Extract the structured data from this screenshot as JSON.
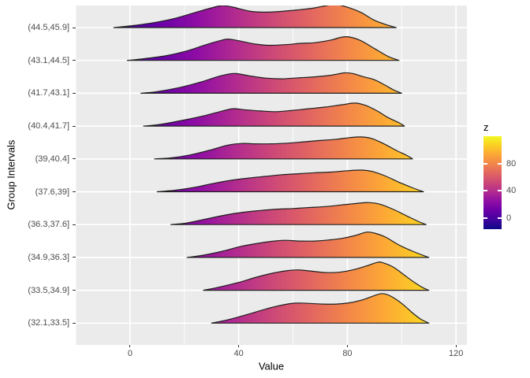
{
  "figure": {
    "background": "#ffffff",
    "panel_bg": "#ebebeb",
    "grid_color": "#ffffff",
    "tick_color": "#333333",
    "tick_label_color": "#4d4d4d",
    "title_color": "#000000",
    "ridge_stroke": "#1f1f1f"
  },
  "chart_data": {
    "type": "area",
    "variant": "ridgeline-gradient",
    "title": "",
    "xlabel": "Value",
    "ylabel": "Group Intervals",
    "x_ticks": [
      0,
      40,
      80,
      120
    ],
    "x_minor_ticks": [
      -20,
      20,
      60,
      100
    ],
    "x_domain": [
      -20,
      124
    ],
    "grid": true,
    "categories": [
      "(44.5,45.9]",
      "(43.1,44.5]",
      "(41.7,43.1]",
      "(40.4,41.7]",
      "(39,40.4]",
      "(37.6,39]",
      "(36.3,37.6]",
      "(34.9,36.3]",
      "(33.5,34.9]",
      "(32.1,33.5]"
    ],
    "series": [
      {
        "name": "(44.5,45.9]",
        "points": [
          [
            -6,
            0
          ],
          [
            0,
            0.05
          ],
          [
            8,
            0.14
          ],
          [
            16,
            0.27
          ],
          [
            24,
            0.46
          ],
          [
            30,
            0.6
          ],
          [
            34,
            0.67
          ],
          [
            38,
            0.62
          ],
          [
            44,
            0.5
          ],
          [
            49,
            0.47
          ],
          [
            55,
            0.49
          ],
          [
            62,
            0.54
          ],
          [
            68,
            0.6
          ],
          [
            73,
            0.68
          ],
          [
            76,
            0.7
          ],
          [
            80,
            0.62
          ],
          [
            85,
            0.46
          ],
          [
            90,
            0.22
          ],
          [
            95,
            0.07
          ],
          [
            98,
            0
          ]
        ]
      },
      {
        "name": "(43.1,44.5]",
        "points": [
          [
            -1,
            0
          ],
          [
            5,
            0.05
          ],
          [
            13,
            0.14
          ],
          [
            21,
            0.29
          ],
          [
            28,
            0.48
          ],
          [
            33,
            0.6
          ],
          [
            36,
            0.65
          ],
          [
            40,
            0.6
          ],
          [
            46,
            0.5
          ],
          [
            51,
            0.46
          ],
          [
            57,
            0.48
          ],
          [
            63,
            0.52
          ],
          [
            68,
            0.54
          ],
          [
            74,
            0.62
          ],
          [
            78,
            0.71
          ],
          [
            81,
            0.71
          ],
          [
            85,
            0.6
          ],
          [
            90,
            0.36
          ],
          [
            95,
            0.12
          ],
          [
            99,
            0
          ]
        ]
      },
      {
        "name": "(41.7,43.1]",
        "points": [
          [
            4,
            0
          ],
          [
            10,
            0.05
          ],
          [
            18,
            0.17
          ],
          [
            26,
            0.34
          ],
          [
            32,
            0.5
          ],
          [
            36,
            0.58
          ],
          [
            39,
            0.6
          ],
          [
            44,
            0.53
          ],
          [
            50,
            0.46
          ],
          [
            56,
            0.44
          ],
          [
            62,
            0.47
          ],
          [
            68,
            0.5
          ],
          [
            74,
            0.55
          ],
          [
            79,
            0.62
          ],
          [
            82,
            0.6
          ],
          [
            86,
            0.5
          ],
          [
            90,
            0.41
          ],
          [
            94,
            0.24
          ],
          [
            97,
            0.1
          ],
          [
            100,
            0
          ]
        ]
      },
      {
        "name": "(40.4,41.7]",
        "points": [
          [
            5,
            0
          ],
          [
            11,
            0.05
          ],
          [
            19,
            0.17
          ],
          [
            27,
            0.31
          ],
          [
            34,
            0.46
          ],
          [
            38,
            0.53
          ],
          [
            42,
            0.5
          ],
          [
            48,
            0.46
          ],
          [
            54,
            0.44
          ],
          [
            60,
            0.48
          ],
          [
            66,
            0.53
          ],
          [
            72,
            0.58
          ],
          [
            78,
            0.65
          ],
          [
            83,
            0.7
          ],
          [
            87,
            0.62
          ],
          [
            91,
            0.46
          ],
          [
            95,
            0.26
          ],
          [
            99,
            0.1
          ],
          [
            101,
            0
          ]
        ]
      },
      {
        "name": "(39,40.4]",
        "points": [
          [
            9,
            0
          ],
          [
            15,
            0.03
          ],
          [
            22,
            0.12
          ],
          [
            29,
            0.26
          ],
          [
            36,
            0.42
          ],
          [
            41,
            0.47
          ],
          [
            46,
            0.46
          ],
          [
            52,
            0.46
          ],
          [
            58,
            0.48
          ],
          [
            64,
            0.52
          ],
          [
            70,
            0.56
          ],
          [
            76,
            0.6
          ],
          [
            81,
            0.65
          ],
          [
            85,
            0.67
          ],
          [
            89,
            0.62
          ],
          [
            93,
            0.48
          ],
          [
            98,
            0.26
          ],
          [
            102,
            0.1
          ],
          [
            104,
            0
          ]
        ]
      },
      {
        "name": "(37.6,39]",
        "points": [
          [
            10,
            0
          ],
          [
            17,
            0.05
          ],
          [
            24,
            0.14
          ],
          [
            31,
            0.26
          ],
          [
            38,
            0.36
          ],
          [
            44,
            0.42
          ],
          [
            50,
            0.47
          ],
          [
            56,
            0.52
          ],
          [
            62,
            0.55
          ],
          [
            68,
            0.58
          ],
          [
            74,
            0.6
          ],
          [
            80,
            0.64
          ],
          [
            85,
            0.66
          ],
          [
            89,
            0.62
          ],
          [
            94,
            0.48
          ],
          [
            99,
            0.29
          ],
          [
            104,
            0.12
          ],
          [
            108,
            0
          ]
        ]
      },
      {
        "name": "(36.3,37.6]",
        "points": [
          [
            15,
            0
          ],
          [
            21,
            0.05
          ],
          [
            28,
            0.17
          ],
          [
            35,
            0.29
          ],
          [
            42,
            0.38
          ],
          [
            48,
            0.43
          ],
          [
            54,
            0.47
          ],
          [
            60,
            0.49
          ],
          [
            66,
            0.52
          ],
          [
            72,
            0.55
          ],
          [
            78,
            0.6
          ],
          [
            84,
            0.65
          ],
          [
            88,
            0.67
          ],
          [
            92,
            0.62
          ],
          [
            97,
            0.46
          ],
          [
            102,
            0.26
          ],
          [
            106,
            0.1
          ],
          [
            109,
            0
          ]
        ]
      },
      {
        "name": "(34.9,36.3]",
        "points": [
          [
            21,
            0
          ],
          [
            27,
            0.07
          ],
          [
            34,
            0.19
          ],
          [
            41,
            0.34
          ],
          [
            47,
            0.43
          ],
          [
            52,
            0.49
          ],
          [
            57,
            0.52
          ],
          [
            62,
            0.5
          ],
          [
            68,
            0.5
          ],
          [
            73,
            0.53
          ],
          [
            78,
            0.58
          ],
          [
            83,
            0.67
          ],
          [
            87,
            0.77
          ],
          [
            90,
            0.74
          ],
          [
            94,
            0.62
          ],
          [
            99,
            0.38
          ],
          [
            104,
            0.19
          ],
          [
            108,
            0.06
          ],
          [
            110,
            0
          ]
        ]
      },
      {
        "name": "(33.5,34.9]",
        "points": [
          [
            27,
            0
          ],
          [
            33,
            0.1
          ],
          [
            40,
            0.24
          ],
          [
            47,
            0.41
          ],
          [
            53,
            0.53
          ],
          [
            58,
            0.6
          ],
          [
            62,
            0.62
          ],
          [
            67,
            0.58
          ],
          [
            72,
            0.54
          ],
          [
            77,
            0.55
          ],
          [
            82,
            0.62
          ],
          [
            87,
            0.74
          ],
          [
            91,
            0.85
          ],
          [
            93,
            0.84
          ],
          [
            97,
            0.7
          ],
          [
            101,
            0.46
          ],
          [
            105,
            0.22
          ],
          [
            108,
            0.07
          ],
          [
            110,
            0
          ]
        ]
      },
      {
        "name": "(32.1,33.5]",
        "points": [
          [
            30,
            0
          ],
          [
            36,
            0.1
          ],
          [
            43,
            0.26
          ],
          [
            50,
            0.43
          ],
          [
            56,
            0.55
          ],
          [
            61,
            0.61
          ],
          [
            66,
            0.6
          ],
          [
            71,
            0.58
          ],
          [
            76,
            0.58
          ],
          [
            81,
            0.62
          ],
          [
            86,
            0.72
          ],
          [
            90,
            0.84
          ],
          [
            93,
            0.9
          ],
          [
            96,
            0.82
          ],
          [
            100,
            0.6
          ],
          [
            104,
            0.31
          ],
          [
            107,
            0.12
          ],
          [
            110,
            0
          ]
        ]
      }
    ],
    "legend": {
      "title": "z",
      "ticks": [
        0,
        40,
        80
      ],
      "domain": [
        -16,
        120
      ],
      "position": "right"
    },
    "colormap": {
      "name": "plasma",
      "stops": [
        [
          0,
          "#0d0887"
        ],
        [
          0.1,
          "#41049d"
        ],
        [
          0.2,
          "#6a00a8"
        ],
        [
          0.3,
          "#8f0da4"
        ],
        [
          0.4,
          "#b12a90"
        ],
        [
          0.5,
          "#cc4778"
        ],
        [
          0.6,
          "#e16462"
        ],
        [
          0.7,
          "#f2844b"
        ],
        [
          0.8,
          "#fca636"
        ],
        [
          0.9,
          "#fcce25"
        ],
        [
          1,
          "#f0f921"
        ]
      ]
    }
  }
}
